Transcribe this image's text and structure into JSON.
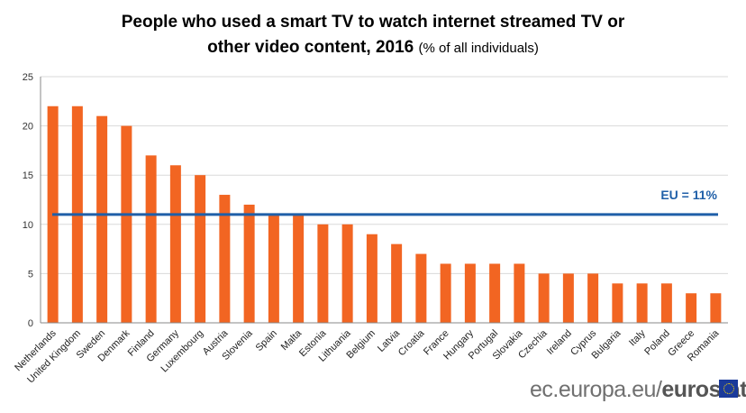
{
  "chart_data": {
    "type": "bar",
    "title": "People who used a smart TV to watch internet streamed TV or",
    "title_line2": "other video content, 2016",
    "subtitle": "(% of all individuals)",
    "categories": [
      "Netherlands",
      "United Kingdom",
      "Sweden",
      "Denmark",
      "Finland",
      "Germany",
      "Luxembourg",
      "Austria",
      "Slovenia",
      "Spain",
      "Malta",
      "Estonia",
      "Lithuania",
      "Belgium",
      "Latvia",
      "Croatia",
      "France",
      "Hungary",
      "Portugal",
      "Slovakia",
      "Czechia",
      "Ireland",
      "Cyprus",
      "Bulgaria",
      "Italy",
      "Poland",
      "Greece",
      "Romania"
    ],
    "values": [
      22,
      22,
      21,
      20,
      17,
      16,
      15,
      13,
      12,
      11,
      11,
      10,
      10,
      9,
      8,
      7,
      6,
      6,
      6,
      6,
      5,
      5,
      5,
      4,
      4,
      4,
      3,
      3
    ],
    "ylim": [
      0,
      25
    ],
    "yticks": [
      0,
      5,
      10,
      15,
      20,
      25
    ],
    "grid": true,
    "bar_color": "#f26522",
    "reference_line": {
      "label": "EU = 11%",
      "value": 11,
      "color": "#1f5fa8"
    }
  },
  "footer": {
    "site": "ec.europa.eu/",
    "brand": "eurostat"
  }
}
